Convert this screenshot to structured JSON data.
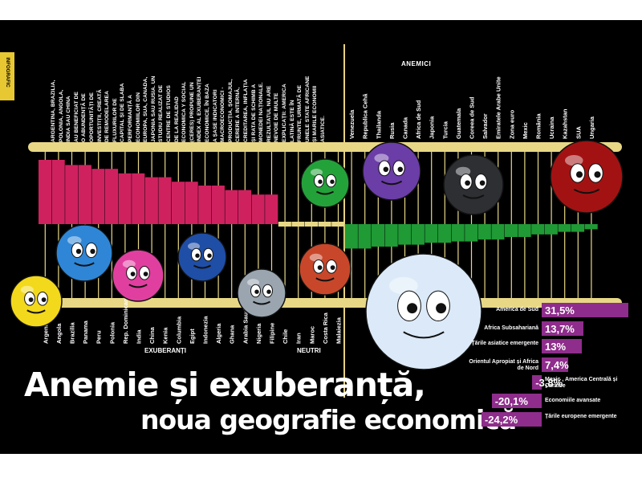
{
  "side_tab": "INFOGRAFIC",
  "paragraph": [
    "ARGENTINA, BRAZILIA,",
    "POLONIA, ANGOLA,",
    "INDIA SAU CHINA",
    "AU BENEFICIAT DE",
    "O ABUNDENȚĂ DE",
    "OPORTUNITĂȚI DE",
    "INVESTIȚII, CREATĂ",
    "DE REMODELAREA",
    "FLUXURILOR DE",
    "CAPITAL ȘI DE SLABA",
    "PERFORMANȚĂ A",
    "ECONOMIILOR DIN",
    "EUROPA, SUA, CANADA,",
    "JAPONIA SAU RUSIA. UN",
    "STUDIU REALIZAT DE",
    "CENTRE DE STUDIOS",
    "DE LA REALIDAD",
    "ECONOMICA Y SOCIAL",
    "(CERES) PROPUNE UN",
    "INDEX AL EXUBERANȚEI",
    "ECONOMICE, ÎN BAZA",
    "A ȘASE INDICATORI",
    "MACROECONOMICI -",
    "PRODUCȚIA, ȘOMAJUL,",
    "CERERE A INTERNĂ,",
    "CREDITAREA, INFLAȚIA",
    "ȘI RATA DE SCHIMB A",
    "MONEDEI NAȚIONALE.",
    "REZULTATUL NU ARE",
    "NEVOIE DE MULTE",
    "EXPLICAȚII: AMERICA",
    "LATINĂ ESTE ÎN",
    "FRUNTE, URMATĂ DE",
    "UNELE STATE AFRICANE",
    "ȘI MARILE ECONOMII",
    "ASIATICE."
  ],
  "groups": {
    "exuberanti": "EXUBERANȚI",
    "neutri": "NEUTRI",
    "anemici": "ANEMICI"
  },
  "headline": {
    "line1": "Anemie și exuberanță,",
    "line2": "noua geografie economică"
  },
  "chart_data": [
    {
      "type": "bar",
      "title": "",
      "groups": [
        "EXUBERANȚI",
        "NEUTRI",
        "ANEMICI"
      ],
      "categories": [
        "Argentina",
        "Angola",
        "Brazilia",
        "Panama",
        "Peru",
        "Polonia",
        "Rep. Dominicană",
        "India",
        "China",
        "Kenia",
        "Columbia",
        "Egipt",
        "Indonezia",
        "Algeria",
        "Ghana",
        "Arabia Saudită",
        "Nigeria",
        "Filipine",
        "Chile",
        "Iran",
        "Maroc",
        "Costa Rica",
        "Malaiezia",
        "Venezuela",
        "Republica Cehă",
        "Thailanda",
        "Rusia",
        "Canada",
        "Africa de Sud",
        "Japonia",
        "Turcia",
        "Guatemala",
        "Coreea de Sud",
        "Salvador",
        "Emiratele Arabe Unite",
        "Zona euro",
        "Mexic",
        "România",
        "Ucraina",
        "Kazahstan",
        "SUA",
        "Ungaria"
      ],
      "values": [
        100,
        100,
        92,
        92,
        86,
        86,
        79,
        79,
        73,
        73,
        66,
        66,
        60,
        60,
        53,
        53,
        46,
        46,
        40,
        40,
        40,
        40,
        40,
        38,
        38,
        35,
        35,
        32,
        32,
        29,
        29,
        27,
        27,
        24,
        24,
        20,
        20,
        16,
        16,
        12,
        12,
        8
      ],
      "colors": {
        "exuberant": "#d0215f",
        "anemic": "#1f9a35",
        "rail": "#e8d886"
      },
      "xlabel": "",
      "ylabel": ""
    },
    {
      "type": "bar",
      "title": "",
      "categories": [
        "America de Sud",
        "Africa Subsahariană",
        "Țările asiatice emergente",
        "Orientul Apropiat și Africa de Nord",
        "Mexic , America Centrală și Caraibe",
        "Economiile avansate",
        "Țările europene emergente"
      ],
      "values": [
        31.5,
        13.7,
        13,
        7.4,
        -3.8,
        -20.1,
        -24.2
      ],
      "value_labels": [
        "31,5%",
        "13,7%",
        "13%",
        "7,4%",
        "-3,8%",
        "-20,1%",
        "-24,2%"
      ],
      "bar_color": "#8e2d8b",
      "xlabel": "",
      "ylabel": ""
    }
  ]
}
